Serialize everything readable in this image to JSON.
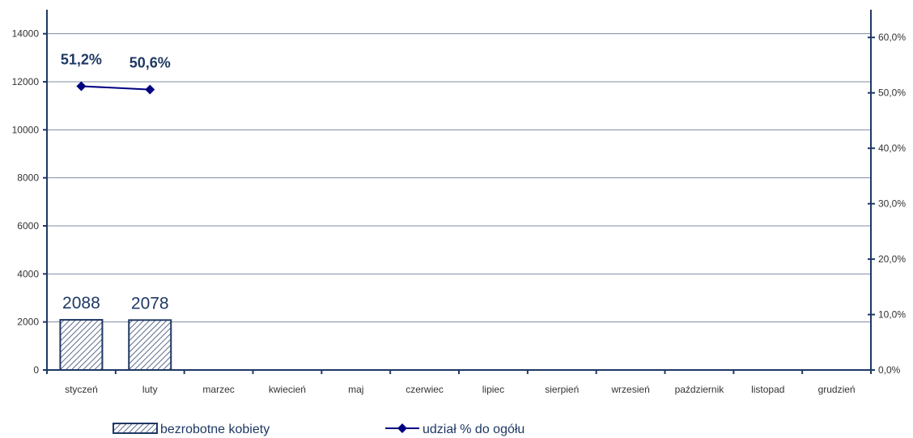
{
  "chart_data": {
    "type": "bar",
    "categories": [
      "styczeń",
      "luty",
      "marzec",
      "kwiecień",
      "maj",
      "czerwiec",
      "lipiec",
      "sierpień",
      "wrzesień",
      "październik",
      "listopad",
      "grudzień"
    ],
    "series": [
      {
        "name": "bezrobotne kobiety",
        "type": "bar",
        "axis": "left",
        "values": [
          2088,
          2078,
          null,
          null,
          null,
          null,
          null,
          null,
          null,
          null,
          null,
          null
        ],
        "labels": [
          "2088",
          "2078",
          null,
          null,
          null,
          null,
          null,
          null,
          null,
          null,
          null,
          null
        ]
      },
      {
        "name": "udział % do ogółu",
        "type": "line",
        "axis": "right",
        "values": [
          51.2,
          50.6,
          null,
          null,
          null,
          null,
          null,
          null,
          null,
          null,
          null,
          null
        ],
        "labels": [
          "51,2%",
          "50,6%",
          null,
          null,
          null,
          null,
          null,
          null,
          null,
          null,
          null,
          null
        ]
      }
    ],
    "y_left": {
      "lim": [
        0,
        15000
      ],
      "ticks": [
        0,
        2000,
        4000,
        6000,
        8000,
        10000,
        12000,
        14000
      ],
      "tick_labels": [
        "0",
        "2000",
        "4000",
        "6000",
        "8000",
        "10000",
        "12000",
        "14000"
      ]
    },
    "y_right": {
      "lim": [
        0,
        65
      ],
      "ticks": [
        0,
        10,
        20,
        30,
        40,
        50,
        60
      ],
      "tick_labels": [
        "0,0%",
        "10,0%",
        "20,0%",
        "30,0%",
        "40,0%",
        "50,0%",
        "60,0%"
      ]
    },
    "grid": true,
    "legend_position": "bottom",
    "colors": {
      "axis": "#1f3864",
      "bar": "#1f3864",
      "line": "#000080",
      "grid": "#7f8ca6"
    },
    "bar_pattern": "diagonal-hatch"
  }
}
